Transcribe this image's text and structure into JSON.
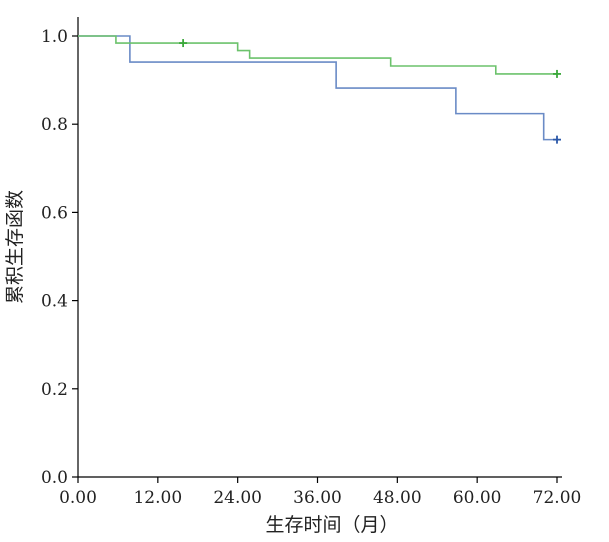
{
  "chart_data": {
    "type": "line",
    "subtype": "kaplan-meier-step",
    "title": "",
    "xlabel": "生存时间（月）",
    "ylabel": "累积生存函数",
    "xlim": [
      0,
      72
    ],
    "ylim": [
      0,
      1.0
    ],
    "x_ticks": [
      0,
      12,
      24,
      36,
      48,
      60,
      72
    ],
    "x_tick_labels": [
      "0.00",
      "12.00",
      "24.00",
      "36.00",
      "48.00",
      "60.00",
      "72.00"
    ],
    "y_ticks": [
      0,
      0.2,
      0.4,
      0.6,
      0.8,
      1.0
    ],
    "y_tick_labels": [
      "0.0",
      "0.2",
      "0.4",
      "0.6",
      "0.8",
      "1.0"
    ],
    "grid": false,
    "legend": "none",
    "series": [
      {
        "color": "#6a8bc6",
        "censor_color": "#2a57a8",
        "steps": [
          [
            0,
            1.0
          ],
          [
            7.8,
            0.941
          ],
          [
            38.8,
            0.882
          ],
          [
            56.8,
            0.824
          ],
          [
            70.0,
            0.765
          ],
          [
            72.0,
            0.765
          ]
        ],
        "censored": [
          [
            72.0,
            0.765
          ]
        ]
      },
      {
        "color": "#6cc26c",
        "censor_color": "#3aa83a",
        "steps": [
          [
            0,
            1.0
          ],
          [
            5.7,
            0.984
          ],
          [
            24.0,
            0.967
          ],
          [
            25.8,
            0.95
          ],
          [
            47.0,
            0.932
          ],
          [
            62.8,
            0.914
          ],
          [
            72.0,
            0.914
          ]
        ],
        "censored": [
          [
            15.8,
            0.984
          ],
          [
            72.0,
            0.914
          ]
        ]
      }
    ]
  }
}
